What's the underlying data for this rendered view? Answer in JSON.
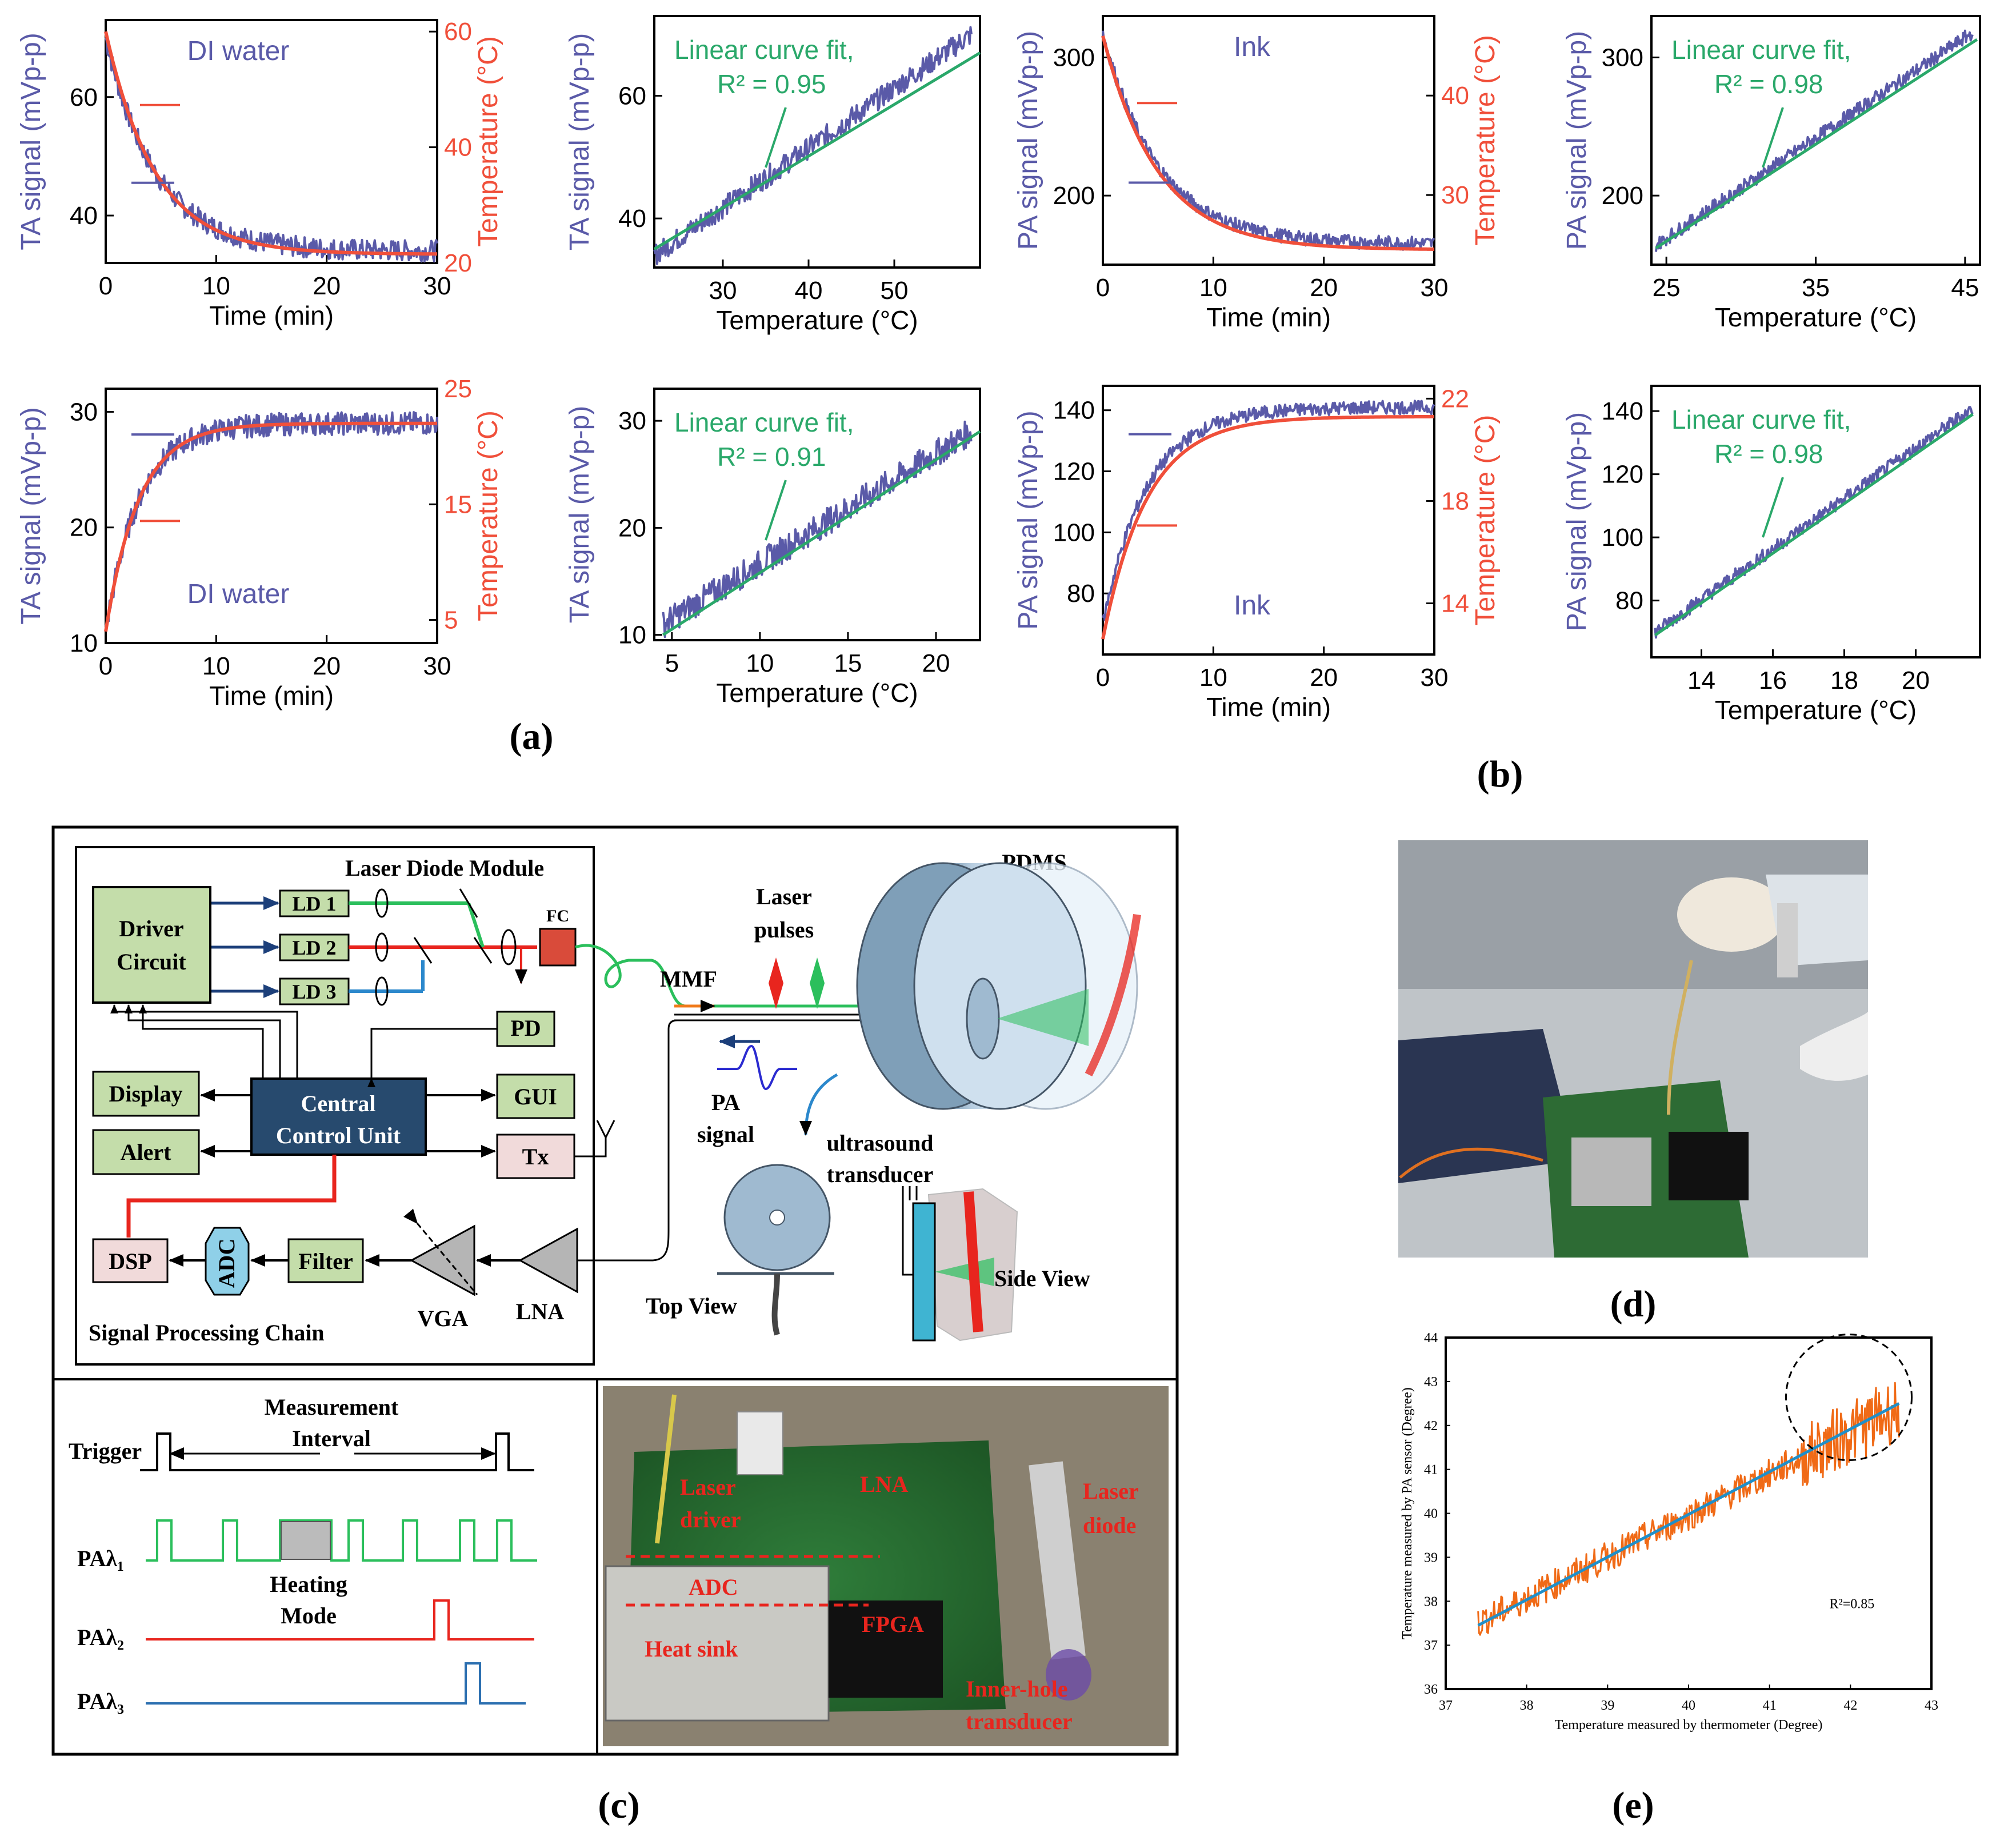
{
  "figure_labels": {
    "a": "(a)",
    "b": "(b)",
    "c": "(c)",
    "d": "(d)",
    "e": "(e)"
  },
  "colors": {
    "signal": "#5a5aa8",
    "temperature": "#f04f3a",
    "fit": "#2aa86a",
    "panel_e_data": "#f06a16",
    "panel_e_fit": "#1f8fc9"
  },
  "chart_data": [
    {
      "id": "a1",
      "type": "line",
      "title": "DI water",
      "xlabel": "Time (min)",
      "ylabel": "TA signal (mVp-p)",
      "y2label": "Temperature (°C)",
      "xlim": [
        0,
        30
      ],
      "ylim": [
        32,
        73
      ],
      "y2lim": [
        20,
        62
      ],
      "xticks": [
        0,
        10,
        20,
        30
      ],
      "yticks": [
        40,
        60
      ],
      "y2ticks": [
        20,
        40,
        60
      ],
      "series": [
        {
          "name": "TA signal",
          "shape": "decay",
          "start": 70,
          "end": 34,
          "tau": 4.5,
          "noise": 1.8
        },
        {
          "name": "Temperature",
          "shape": "decay",
          "start": 60,
          "end": 21.5,
          "tau": 4.5,
          "axis": "right"
        }
      ]
    },
    {
      "id": "a2",
      "type": "line",
      "title": "Linear curve fit, R² = 0.95",
      "fit_line1": "Linear curve fit,",
      "fit_line2": "R² = 0.95",
      "xlabel": "Temperature (°C)",
      "ylabel": "TA signal (mVp-p)",
      "xlim": [
        22,
        60
      ],
      "ylim": [
        32,
        73
      ],
      "xticks": [
        30,
        40,
        50
      ],
      "yticks": [
        40,
        60
      ],
      "series": [
        {
          "name": "TA signal",
          "shape": "linear",
          "x0": 22,
          "y0": 34,
          "x1": 59,
          "y1": 70,
          "noise": 1.8
        },
        {
          "name": "Linear fit",
          "x": [
            22,
            60
          ],
          "y": [
            35,
            67
          ]
        }
      ]
    },
    {
      "id": "a3",
      "type": "line",
      "title": "DI water",
      "xlabel": "Time (min)",
      "ylabel": "TA signal (mVp-p)",
      "y2label": "Temperature (°C)",
      "xlim": [
        0,
        30
      ],
      "ylim": [
        10,
        32
      ],
      "y2lim": [
        3,
        25
      ],
      "xticks": [
        0,
        10,
        20,
        30
      ],
      "yticks": [
        10,
        20,
        30
      ],
      "y2ticks": [
        5,
        15,
        25
      ],
      "series": [
        {
          "name": "TA signal",
          "shape": "rise",
          "start": 11,
          "end": 29,
          "tau": 3,
          "noise": 1.0
        },
        {
          "name": "Temperature",
          "shape": "rise",
          "start": 4,
          "end": 22,
          "tau": 3,
          "axis": "right"
        }
      ]
    },
    {
      "id": "a4",
      "type": "line",
      "title": "Linear curve fit, R² = 0.91",
      "fit_line1": "Linear curve fit,",
      "fit_line2": "R² = 0.91",
      "xlabel": "Temperature (°C)",
      "ylabel": "TA signal (mVp-p)",
      "xlim": [
        4,
        22.5
      ],
      "ylim": [
        9.5,
        33
      ],
      "xticks": [
        5,
        10,
        15,
        20
      ],
      "yticks": [
        10,
        20,
        30
      ],
      "series": [
        {
          "name": "TA signal",
          "shape": "linear",
          "x0": 4.5,
          "y0": 11,
          "x1": 22,
          "y1": 29,
          "noise": 1.3
        },
        {
          "name": "Linear fit",
          "x": [
            4.5,
            22.5
          ],
          "y": [
            10,
            29
          ]
        }
      ]
    },
    {
      "id": "b1",
      "type": "line",
      "title": "Ink",
      "xlabel": "Time (min)",
      "ylabel": "PA signal (mVp-p)",
      "y2label": "Temperature (°C)",
      "xlim": [
        0,
        30
      ],
      "ylim": [
        150,
        330
      ],
      "y2lim": [
        23,
        48
      ],
      "xticks": [
        0,
        10,
        20,
        30
      ],
      "yticks": [
        200,
        300
      ],
      "y2ticks": [
        30,
        40
      ],
      "series": [
        {
          "name": "PA signal",
          "shape": "decay",
          "start": 318,
          "end": 165,
          "tau": 5,
          "noise": 5
        },
        {
          "name": "Temperature",
          "shape": "decay",
          "start": 46,
          "end": 24.5,
          "tau": 5,
          "axis": "right"
        }
      ]
    },
    {
      "id": "b2",
      "type": "line",
      "title": "Linear curve fit, R² = 0.98",
      "fit_line1": "Linear curve fit,",
      "fit_line2": "R² = 0.98",
      "xlabel": "Temperature (°C)",
      "ylabel": "PA signal (mVp-p)",
      "xlim": [
        24,
        46
      ],
      "ylim": [
        150,
        330
      ],
      "xticks": [
        25,
        35,
        45
      ],
      "yticks": [
        200,
        300
      ],
      "series": [
        {
          "name": "PA signal",
          "shape": "linear",
          "x0": 24.3,
          "y0": 164,
          "x1": 45.5,
          "y1": 318,
          "noise": 5
        },
        {
          "name": "Linear fit",
          "x": [
            24.3,
            45.8
          ],
          "y": [
            162,
            313
          ]
        }
      ]
    },
    {
      "id": "b3",
      "type": "line",
      "title": "Ink",
      "xlabel": "Time (min)",
      "ylabel": "PA signal (mVp-p)",
      "y2label": "Temperature (°C)",
      "xlim": [
        0,
        30
      ],
      "ylim": [
        60,
        148
      ],
      "y2lim": [
        12,
        22.5
      ],
      "xticks": [
        0,
        10,
        20,
        30
      ],
      "yticks": [
        80,
        100,
        120,
        140
      ],
      "y2ticks": [
        14,
        18,
        22
      ],
      "series": [
        {
          "name": "PA signal",
          "shape": "rise",
          "start": 70,
          "end": 141,
          "tau": 4,
          "noise": 2.2
        },
        {
          "name": "Temperature",
          "shape": "rise",
          "start": 12.6,
          "end": 21.3,
          "tau": 4,
          "axis": "right"
        }
      ]
    },
    {
      "id": "b4",
      "type": "line",
      "title": "Linear curve fit, R² = 0.98",
      "fit_line1": "Linear curve fit,",
      "fit_line2": "R² = 0.98",
      "xlabel": "Temperature (°C)",
      "ylabel": "PA signal (mVp-p)",
      "xlim": [
        12.6,
        21.8
      ],
      "ylim": [
        62,
        148
      ],
      "xticks": [
        14,
        16,
        18,
        20
      ],
      "yticks": [
        80,
        100,
        120,
        140
      ],
      "series": [
        {
          "name": "PA signal",
          "shape": "linear",
          "x0": 12.7,
          "y0": 70,
          "x1": 21.6,
          "y1": 141,
          "noise": 2.2
        },
        {
          "name": "Linear fit",
          "x": [
            12.7,
            21.6
          ],
          "y": [
            69,
            139
          ]
        }
      ]
    },
    {
      "id": "e",
      "type": "line",
      "title": "R²=0.85",
      "xlabel": "Temperature measured by thermometer (Degree)",
      "ylabel": "Temperature measured by PA sensor (Degree)",
      "xlim": [
        37,
        43
      ],
      "ylim": [
        36,
        44
      ],
      "xticks": [
        37,
        38,
        39,
        40,
        41,
        42,
        43
      ],
      "yticks": [
        36,
        37,
        38,
        39,
        40,
        41,
        42,
        43,
        44
      ],
      "series": [
        {
          "name": "PA sensor",
          "shape": "linear",
          "x0": 37.4,
          "y0": 37.5,
          "x1": 42.6,
          "y1": 42.4,
          "noise": 0.35
        },
        {
          "name": "Fit",
          "x": [
            37.4,
            42.6
          ],
          "y": [
            37.45,
            42.5
          ]
        }
      ]
    }
  ],
  "panel_c": {
    "laser_diode_module": "Laser Diode Module",
    "driver_circuit": [
      "Driver",
      "Circuit"
    ],
    "ld": [
      "LD 1",
      "LD 2",
      "LD 3"
    ],
    "fc": "FC",
    "pd": "PD",
    "mmf": "MMF",
    "laser_pulses": [
      "Laser",
      "pulses"
    ],
    "pdms": "PDMS",
    "display": "Display",
    "alert": "Alert",
    "ccu": [
      "Central",
      "Control Unit"
    ],
    "gui": "GUI",
    "tx": "Tx",
    "pa_signal": [
      "PA",
      "signal"
    ],
    "us_transducer": [
      "ultrasound",
      "transducer"
    ],
    "dsp": "DSP",
    "adc": "ADC",
    "filter": "Filter",
    "vga": "VGA",
    "lna": "LNA",
    "spc": "Signal Processing Chain",
    "top_view": "Top View",
    "side_view": "Side View",
    "trigger": "Trigger",
    "meas_interval": [
      "Measurement",
      "Interval"
    ],
    "heating_mode": [
      "Heating",
      "Mode"
    ],
    "pa1": "PAλ₁",
    "pa2": "PAλ₂",
    "pa3": "PAλ₃",
    "photo_labels": {
      "laser_driver": [
        "Laser",
        "driver"
      ],
      "lna": "LNA",
      "laser_diode": [
        "Laser",
        "diode"
      ],
      "adc": "ADC",
      "fpga": "FPGA",
      "heat_sink": "Heat sink",
      "inner_hole": [
        "Inner-hole",
        "transducer"
      ]
    }
  }
}
